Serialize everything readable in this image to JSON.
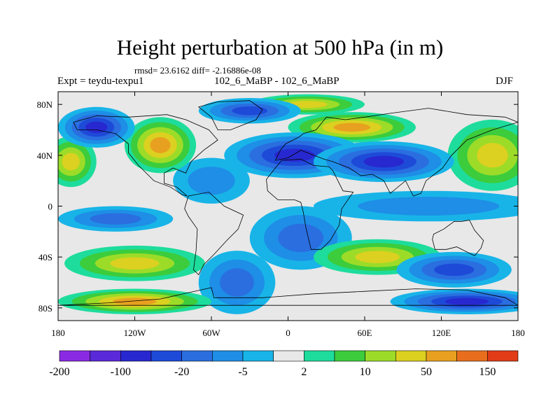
{
  "chart_data": {
    "type": "heatmap",
    "title": "Height perturbation at 500 hPa (in m)",
    "stats_text": "rmsd= 23.6162  diff= -2.16886e-08",
    "left_label": "Expt = teydu-texpu1",
    "center_label": "102_6_MaBP - 102_6_MaBP",
    "right_label": "DJF",
    "x_range": [
      -180,
      180
    ],
    "y_range": [
      -90,
      90
    ],
    "x_ticks": [
      {
        "value": -180,
        "label": "180"
      },
      {
        "value": -120,
        "label": "120W"
      },
      {
        "value": -60,
        "label": "60W"
      },
      {
        "value": 0,
        "label": "0"
      },
      {
        "value": 60,
        "label": "60E"
      },
      {
        "value": 120,
        "label": "120E"
      },
      {
        "value": 180,
        "label": "180"
      }
    ],
    "y_ticks": [
      {
        "value": 80,
        "label": "80N"
      },
      {
        "value": 40,
        "label": "40N"
      },
      {
        "value": 0,
        "label": "0"
      },
      {
        "value": -40,
        "label": "40S"
      },
      {
        "value": -80,
        "label": "80S"
      }
    ],
    "colorbar": {
      "colors": [
        "#8a2be2",
        "#5a2ad8",
        "#2828d0",
        "#1e4ad8",
        "#2a6ee0",
        "#1e8ee6",
        "#18b4e8",
        "#e8e8e8",
        "#1edc9c",
        "#3ccc3c",
        "#9cdc28",
        "#dcd020",
        "#e8a020",
        "#e86e1e",
        "#e03c18"
      ],
      "levels": [
        -200,
        -150,
        -100,
        -50,
        -20,
        -10,
        -5,
        -2,
        2,
        5,
        10,
        20,
        50,
        100,
        150,
        200
      ],
      "tick_labels": [
        {
          "value": -200,
          "label": "-200"
        },
        {
          "value": -100,
          "label": "-100"
        },
        {
          "value": -20,
          "label": "-20"
        },
        {
          "value": -5,
          "label": "-5"
        },
        {
          "value": 2,
          "label": "2"
        },
        {
          "value": 10,
          "label": "10"
        },
        {
          "value": 50,
          "label": "50"
        },
        {
          "value": 150,
          "label": "150"
        }
      ]
    },
    "field_features": [
      {
        "lon": -150,
        "lat": 62,
        "value": -70,
        "width": 30,
        "height": 16
      },
      {
        "lon": -170,
        "lat": 35,
        "value": 40,
        "width": 20,
        "height": 20
      },
      {
        "lon": -100,
        "lat": 48,
        "value": 55,
        "width": 28,
        "height": 22
      },
      {
        "lon": -135,
        "lat": -10,
        "value": -15,
        "width": 45,
        "height": 10
      },
      {
        "lon": -120,
        "lat": -45,
        "value": 25,
        "width": 55,
        "height": 14
      },
      {
        "lon": -120,
        "lat": -75,
        "value": 60,
        "width": 60,
        "height": 10
      },
      {
        "lon": -30,
        "lat": 75,
        "value": -30,
        "width": 40,
        "height": 10
      },
      {
        "lon": 15,
        "lat": 80,
        "value": 25,
        "width": 45,
        "height": 8
      },
      {
        "lon": 50,
        "lat": 62,
        "value": 50,
        "width": 50,
        "height": 12
      },
      {
        "lon": 5,
        "lat": 40,
        "value": -60,
        "width": 55,
        "height": 18
      },
      {
        "lon": 75,
        "lat": 35,
        "value": -80,
        "width": 55,
        "height": 16
      },
      {
        "lon": 160,
        "lat": 40,
        "value": 45,
        "width": 35,
        "height": 28
      },
      {
        "lon": 110,
        "lat": 0,
        "value": -6,
        "width": 90,
        "height": 12
      },
      {
        "lon": 10,
        "lat": -25,
        "value": -12,
        "width": 40,
        "height": 25
      },
      {
        "lon": 70,
        "lat": -40,
        "value": 30,
        "width": 50,
        "height": 14
      },
      {
        "lon": 130,
        "lat": -50,
        "value": -40,
        "width": 45,
        "height": 14
      },
      {
        "lon": 140,
        "lat": -75,
        "value": -50,
        "width": 60,
        "height": 10
      },
      {
        "lon": -40,
        "lat": -60,
        "value": -10,
        "width": 30,
        "height": 25
      },
      {
        "lon": -60,
        "lat": 20,
        "value": -8,
        "width": 30,
        "height": 18
      }
    ],
    "continents": [
      [
        [
          -168,
          66
        ],
        [
          -150,
          71
        ],
        [
          -125,
          70
        ],
        [
          -95,
          72
        ],
        [
          -80,
          68
        ],
        [
          -62,
          60
        ],
        [
          -55,
          52
        ],
        [
          -66,
          44
        ],
        [
          -76,
          35
        ],
        [
          -80,
          26
        ],
        [
          -90,
          30
        ],
        [
          -97,
          26
        ],
        [
          -97,
          18
        ],
        [
          -87,
          15
        ],
        [
          -79,
          8
        ],
        [
          -83,
          9
        ],
        [
          -92,
          15
        ],
        [
          -105,
          20
        ],
        [
          -117,
          32
        ],
        [
          -125,
          42
        ],
        [
          -125,
          49
        ],
        [
          -135,
          57
        ],
        [
          -150,
          60
        ],
        [
          -165,
          60
        ]
      ],
      [
        [
          -78,
          8
        ],
        [
          -62,
          11
        ],
        [
          -50,
          0
        ],
        [
          -35,
          -7
        ],
        [
          -39,
          -18
        ],
        [
          -48,
          -27
        ],
        [
          -58,
          -38
        ],
        [
          -66,
          -46
        ],
        [
          -70,
          -54
        ],
        [
          -74,
          -50
        ],
        [
          -72,
          -35
        ],
        [
          -71,
          -18
        ],
        [
          -78,
          -8
        ],
        [
          -81,
          -2
        ]
      ],
      [
        [
          -10,
          36
        ],
        [
          -6,
          44
        ],
        [
          -2,
          49
        ],
        [
          8,
          54
        ],
        [
          12,
          57
        ],
        [
          22,
          60
        ],
        [
          30,
          70
        ],
        [
          45,
          68
        ],
        [
          60,
          70
        ],
        [
          80,
          73
        ],
        [
          110,
          77
        ],
        [
          140,
          72
        ],
        [
          170,
          70
        ],
        [
          180,
          66
        ],
        [
          160,
          60
        ],
        [
          140,
          52
        ],
        [
          128,
          40
        ],
        [
          121,
          30
        ],
        [
          108,
          20
        ],
        [
          104,
          10
        ],
        [
          98,
          8
        ],
        [
          92,
          20
        ],
        [
          80,
          10
        ],
        [
          75,
          20
        ],
        [
          66,
          25
        ],
        [
          57,
          24
        ],
        [
          48,
          30
        ],
        [
          35,
          35
        ],
        [
          28,
          37
        ],
        [
          20,
          40
        ],
        [
          10,
          44
        ],
        [
          0,
          38
        ]
      ],
      [
        [
          -17,
          21
        ],
        [
          -16,
          12
        ],
        [
          -8,
          5
        ],
        [
          5,
          5
        ],
        [
          10,
          3
        ],
        [
          12,
          -5
        ],
        [
          14,
          -17
        ],
        [
          18,
          -34
        ],
        [
          26,
          -34
        ],
        [
          33,
          -27
        ],
        [
          40,
          -15
        ],
        [
          42,
          -2
        ],
        [
          51,
          11
        ],
        [
          43,
          12
        ],
        [
          35,
          28
        ],
        [
          32,
          31
        ],
        [
          20,
          32
        ],
        [
          10,
          37
        ],
        [
          -5,
          36
        ],
        [
          -10,
          30
        ]
      ],
      [
        [
          114,
          -22
        ],
        [
          122,
          -18
        ],
        [
          130,
          -12
        ],
        [
          136,
          -12
        ],
        [
          142,
          -11
        ],
        [
          146,
          -19
        ],
        [
          153,
          -27
        ],
        [
          151,
          -33
        ],
        [
          146,
          -39
        ],
        [
          138,
          -35
        ],
        [
          132,
          -32
        ],
        [
          124,
          -34
        ],
        [
          115,
          -34
        ],
        [
          113,
          -26
        ]
      ],
      [
        [
          -55,
          60
        ],
        [
          -45,
          60
        ],
        [
          -25,
          68
        ],
        [
          -20,
          76
        ],
        [
          -30,
          83
        ],
        [
          -55,
          82
        ],
        [
          -70,
          78
        ],
        [
          -60,
          70
        ]
      ],
      [
        [
          -180,
          -78
        ],
        [
          -140,
          -76
        ],
        [
          -100,
          -73
        ],
        [
          -60,
          -64
        ],
        [
          -58,
          -72
        ],
        [
          -20,
          -72
        ],
        [
          20,
          -69
        ],
        [
          60,
          -67
        ],
        [
          100,
          -65
        ],
        [
          140,
          -66
        ],
        [
          170,
          -72
        ],
        [
          180,
          -78
        ]
      ]
    ]
  }
}
